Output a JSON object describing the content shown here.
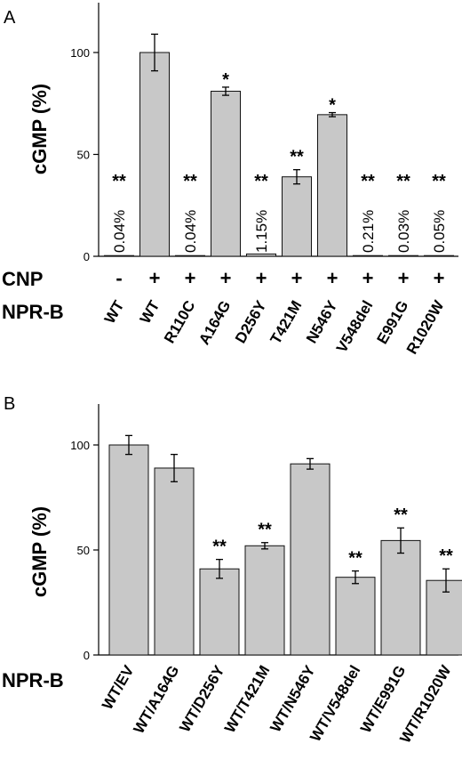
{
  "chart_data": [
    {
      "type": "bar",
      "panel": "A",
      "ylabel": "cGMP (%)",
      "yticks": [
        0,
        50,
        100
      ],
      "ylim": [
        0,
        125
      ],
      "row_labels": {
        "cnp": "CNP",
        "npr": "NPR-B"
      },
      "categories": [
        "WT",
        "WT",
        "R110C",
        "A164G",
        "D256Y",
        "T421M",
        "N546Y",
        "V548del",
        "E991G",
        "R1020W"
      ],
      "cnp": [
        "-",
        "+",
        "+",
        "+",
        "+",
        "+",
        "+",
        "+",
        "+",
        "+"
      ],
      "values": [
        0.04,
        100,
        0.04,
        81,
        1.15,
        39,
        69.5,
        0.21,
        0.03,
        0.05
      ],
      "errors": [
        0,
        9,
        0,
        2,
        0,
        3.5,
        1,
        0,
        0,
        0
      ],
      "significance": [
        "**",
        "",
        "**",
        "*",
        "**",
        "**",
        "*",
        "**",
        "**",
        "**"
      ],
      "value_labels": [
        "0.04%",
        "",
        "0.04%",
        "",
        "1.15%",
        "",
        "",
        "0.21%",
        "0.03%",
        "0.05%"
      ]
    },
    {
      "type": "bar",
      "panel": "B",
      "ylabel": "cGMP (%)",
      "yticks": [
        0,
        50,
        100
      ],
      "ylim": [
        0,
        125
      ],
      "row_labels": {
        "npr": "NPR-B"
      },
      "categories": [
        "WT/EV",
        "WT/A164G",
        "WT/D256Y",
        "WT/T421M",
        "WT/N546Y",
        "WT/V548del",
        "WT/E991G",
        "WT/R1020W"
      ],
      "values": [
        100,
        89,
        41,
        52,
        91,
        37,
        54.5,
        35.5
      ],
      "errors": [
        4.5,
        6.5,
        4.5,
        1.5,
        2.5,
        3,
        6,
        5.5
      ],
      "significance": [
        "",
        "",
        "**",
        "**",
        "",
        "**",
        "**",
        "**"
      ]
    }
  ]
}
